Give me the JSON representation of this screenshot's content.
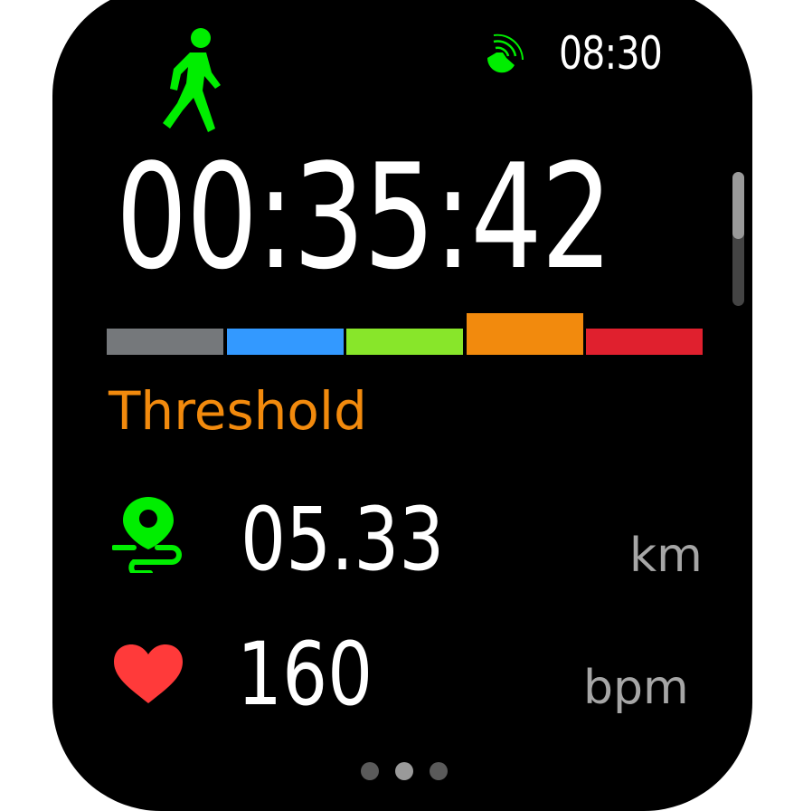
{
  "status": {
    "time": "08:30",
    "gps_icon": "gps-signal-icon",
    "gps_color": "#00ee00"
  },
  "activity": {
    "icon": "walking-icon",
    "color": "#00ee00"
  },
  "workout": {
    "elapsed": "00:35:42"
  },
  "heart_zone": {
    "zones": [
      {
        "color": "#75787b"
      },
      {
        "color": "#3399ff"
      },
      {
        "color": "#88e62a"
      },
      {
        "color": "#f28a0d",
        "active": true
      },
      {
        "color": "#e0202e"
      }
    ],
    "current_label": "Threshold",
    "label_color": "#f28a0d"
  },
  "metrics": [
    {
      "icon": "route-distance-icon",
      "value": "05.33",
      "unit": "km",
      "color": "#00ee00"
    },
    {
      "icon": "heart-icon",
      "value": "160",
      "unit": "bpm",
      "color": "#ff3a3a"
    }
  ],
  "pagination": {
    "pages": 3,
    "current": 2
  }
}
